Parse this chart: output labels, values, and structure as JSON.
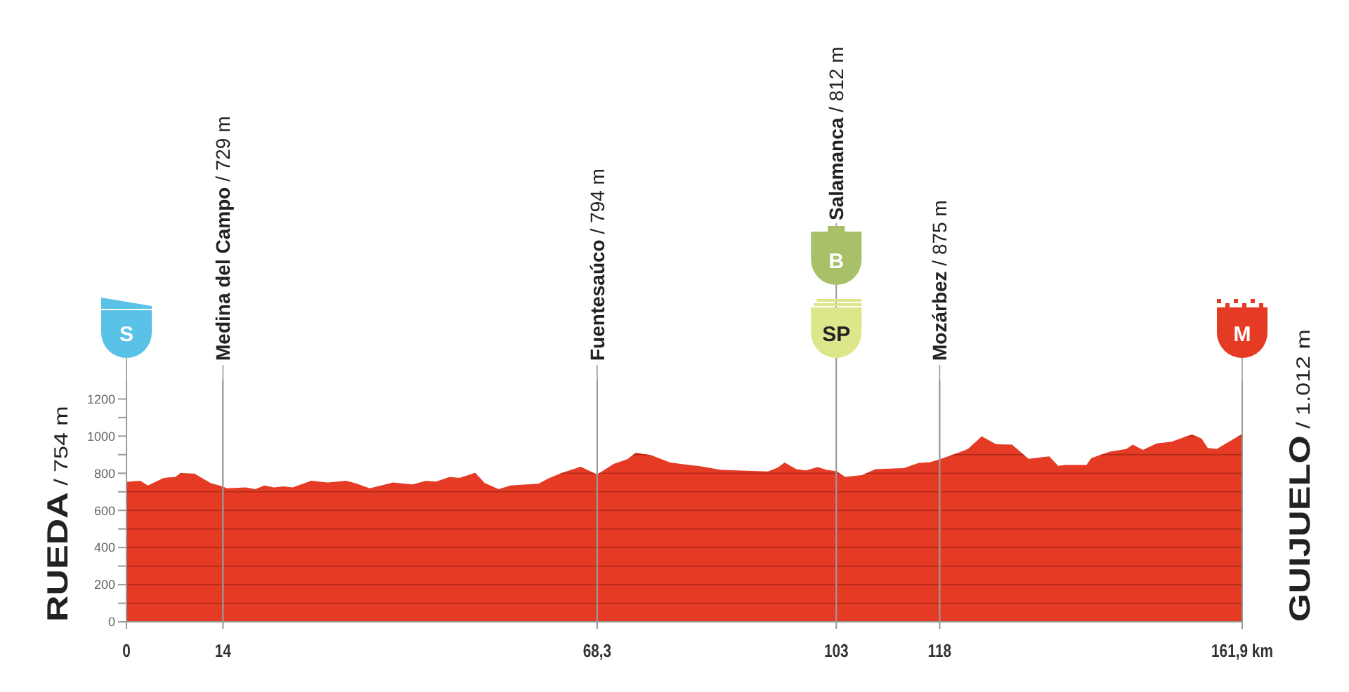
{
  "chart_data": {
    "type": "area",
    "x": [
      0,
      2,
      3.1,
      5.4,
      7.1,
      7.8,
      9.9,
      12.2,
      13.9,
      14.6,
      17.3,
      18.7,
      20,
      21.4,
      22.8,
      24.1,
      26.8,
      29.2,
      31.9,
      33.3,
      35.3,
      38.7,
      41.5,
      43.5,
      44.9,
      46.9,
      48.3,
      50.6,
      52,
      54,
      55.7,
      59.8,
      61.2,
      63.2,
      65.9,
      68.3,
      70.7,
      72.7,
      73.9,
      76.1,
      78.9,
      81.6,
      82.9,
      86.3,
      93.1,
      94.5,
      95.5,
      97.2,
      98.6,
      100.3,
      101.6,
      103,
      104.3,
      106.7,
      108.7,
      112.8,
      114.9,
      116.6,
      118,
      120.7,
      122.1,
      124.1,
      126.2,
      128.5,
      130.9,
      133.9,
      135.2,
      136.3,
      139.3,
      140,
      142.7,
      145.1,
      146,
      147.5,
      149.5,
      151.6,
      154.6,
      156,
      156.9,
      158.2,
      161.9
    ],
    "series": [
      {
        "color": "#e53b24",
        "values": [
          754,
          760,
          734,
          775,
          780,
          800,
          797,
          747,
          729,
          719,
          724,
          714,
          734,
          724,
          729,
          724,
          760,
          750,
          760,
          745,
          719,
          750,
          740,
          760,
          755,
          780,
          775,
          802,
          747,
          714,
          734,
          744,
          772,
          802,
          835,
          794,
          850,
          876,
          911,
          898,
          858,
          845,
          840,
          818,
          810,
          830,
          858,
          822,
          815,
          833,
          818,
          812,
          780,
          790,
          822,
          828,
          855,
          860,
          875,
          911,
          931,
          999,
          956,
          954,
          878,
          891,
          840,
          845,
          845,
          881,
          916,
          931,
          954,
          926,
          961,
          969,
          1009,
          987,
          936,
          931,
          1012
        ]
      }
    ],
    "xlim": [
      0,
      161.9
    ],
    "xticks": [
      0,
      14,
      {
        "value": 68.3,
        "label": "68,3"
      },
      103,
      118,
      {
        "value": 161.9,
        "label": "161,9 km"
      }
    ],
    "ylim": [
      0,
      1300
    ],
    "yticks": [
      0,
      {
        "value": 100,
        "label": null
      },
      200,
      {
        "value": 300,
        "label": null
      },
      400,
      {
        "value": 500,
        "label": null
      },
      600,
      {
        "value": 700,
        "label": null
      },
      800,
      {
        "value": 900,
        "label": null
      },
      1000,
      {
        "value": 1100,
        "label": null
      },
      1200
    ],
    "grid": true,
    "ref_lines": [
      {
        "axis": "x",
        "value": 14,
        "label": "Medina del Campo / 729 m"
      },
      {
        "axis": "x",
        "value": 68.3,
        "label": "Fuentesaúco / 794 m"
      },
      {
        "axis": "x",
        "value": 103,
        "label": "Salamanca / 812 m"
      },
      {
        "axis": "x",
        "value": 118,
        "label": "Mozárbez / 875 m"
      }
    ],
    "annotations": [
      {
        "text": "S",
        "x": 0
      },
      {
        "text": "SP",
        "x": 103
      },
      {
        "text": "B",
        "x": 103
      },
      {
        "text": "M",
        "x": 161.9
      },
      "RUEDA / 754 m",
      "GUIJUELO / 1.012 m"
    ]
  }
}
